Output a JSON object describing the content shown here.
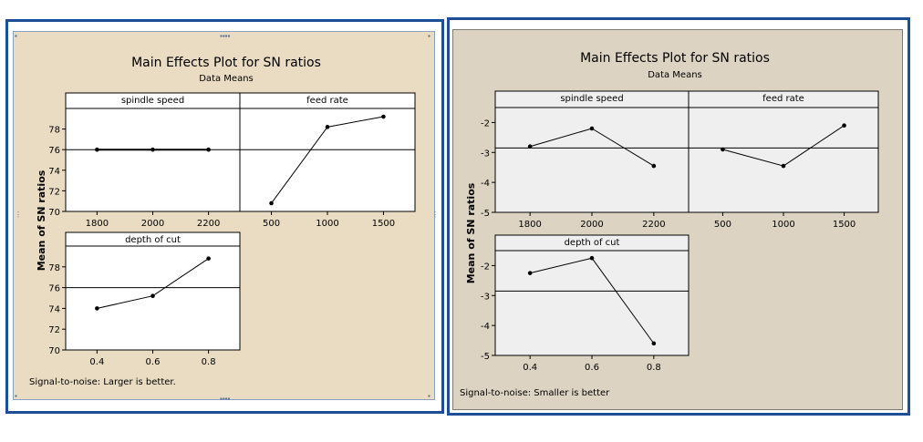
{
  "colors": {
    "frame_border": "#1f4e99",
    "left_background": "#e9dcc3",
    "right_background": "#dcd3c3",
    "plot_background_left": "#ffffff",
    "plot_background_right": "#efefef",
    "line": "#000000"
  },
  "chart_data": [
    {
      "type": "line",
      "title": "Main Effects Plot for SN ratios",
      "subtitle": "Data Means",
      "ylabel": "Mean of SN ratios",
      "footnote": "Signal-to-noise: Larger is better.",
      "ylim": [
        70,
        80
      ],
      "yticks": [
        70,
        72,
        74,
        76,
        78
      ],
      "reference_line": 76,
      "grid": false,
      "panels": [
        {
          "factor": "spindle speed",
          "x": [
            "1800",
            "2000",
            "2200"
          ],
          "y": [
            76.0,
            76.0,
            76.0
          ]
        },
        {
          "factor": "feed rate",
          "x": [
            "500",
            "1000",
            "1500"
          ],
          "y": [
            70.8,
            78.2,
            79.2
          ]
        },
        {
          "factor": "depth of cut",
          "x": [
            "0.4",
            "0.6",
            "0.8"
          ],
          "y": [
            74.0,
            75.2,
            78.8
          ]
        }
      ]
    },
    {
      "type": "line",
      "title": "Main Effects Plot for SN ratios",
      "subtitle": "Data Means",
      "ylabel": "Mean of SN ratios",
      "footnote": "Signal-to-noise: Smaller is better",
      "ylim": [
        -5,
        -1.5
      ],
      "yticks": [
        -5,
        -4,
        -3,
        -2
      ],
      "reference_line": -2.85,
      "grid": false,
      "panels": [
        {
          "factor": "spindle speed",
          "x": [
            "1800",
            "2000",
            "2200"
          ],
          "y": [
            -2.8,
            -2.2,
            -3.45
          ]
        },
        {
          "factor": "feed rate",
          "x": [
            "500",
            "1000",
            "1500"
          ],
          "y": [
            -2.9,
            -3.45,
            -2.1
          ]
        },
        {
          "factor": "depth of cut",
          "x": [
            "0.4",
            "0.6",
            "0.8"
          ],
          "y": [
            -2.25,
            -1.75,
            -4.6
          ]
        }
      ]
    }
  ]
}
